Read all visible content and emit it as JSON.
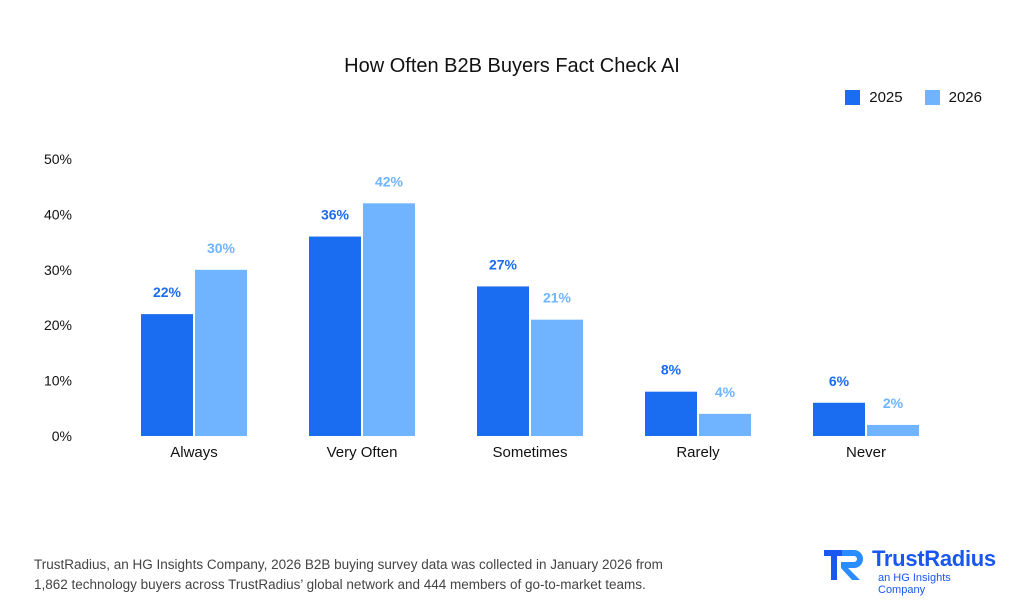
{
  "chart_data": {
    "type": "bar",
    "title": "How Often B2B Buyers Fact Check AI",
    "categories": [
      "Always",
      "Very Often",
      "Sometimes",
      "Rarely",
      "Never"
    ],
    "series": [
      {
        "name": "2025",
        "values": [
          22,
          36,
          27,
          8,
          6
        ],
        "labels": [
          "22%",
          "36%",
          "27%",
          "8%",
          "6%"
        ],
        "color": "#1a6cf0"
      },
      {
        "name": "2026",
        "values": [
          30,
          42,
          21,
          4,
          2
        ],
        "labels": [
          "30%",
          "42%",
          "21%",
          "4%",
          "2%"
        ],
        "color": "#70b4ff"
      }
    ],
    "ylim": [
      0,
      50
    ],
    "yticks": [
      0,
      10,
      20,
      30,
      40,
      50
    ],
    "ytick_labels": [
      "0%",
      "10%",
      "20%",
      "30%",
      "40%",
      "50%"
    ],
    "grid": false,
    "legend_position": "top-right",
    "xlabel": "",
    "ylabel": ""
  },
  "footnote": {
    "line1": "TrustRadius, an HG Insights Company, 2026 B2B buying survey data was collected in January 2026 from",
    "line2": "1,862 technology buyers across TrustRadius’ global network and 444 members of go-to-market teams."
  },
  "logo": {
    "name": "TrustRadius",
    "tagline": "an HG Insights Company",
    "color": "#1a56f0"
  }
}
